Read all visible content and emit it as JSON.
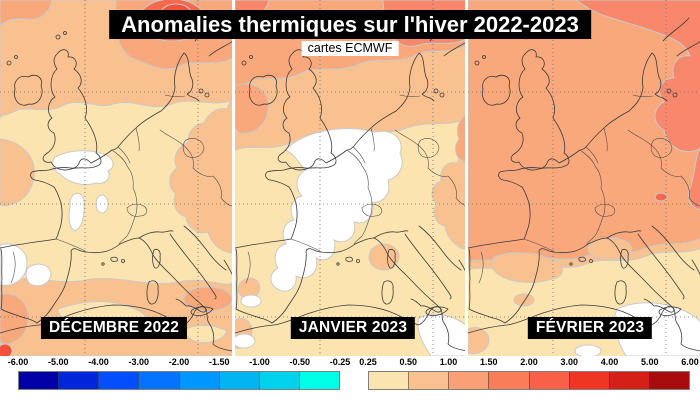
{
  "title": "Anomalies thermiques sur l'hiver 2022-2023",
  "credit": "cartes ECMWF",
  "panels": [
    {
      "label": "DÉCEMBRE 2022"
    },
    {
      "label": "JANVIER 2023"
    },
    {
      "label": "FÉVRIER 2023"
    }
  ],
  "map_palette": {
    "white": "#FFFFFF",
    "cream": "#FBE4AF",
    "peach": "#FAC190",
    "salmon": "#F9A87C",
    "coral": "#F8876B",
    "red": "#F7694E",
    "deepred": "#F4503C"
  },
  "colorbar": {
    "bars": [
      {
        "id": "negative",
        "tick_labels": [
          "-6.00",
          "-5.00",
          "-4.00",
          "-3.00",
          "-2.00",
          "-1.50",
          "-1.00",
          "-0.50",
          "-0.25"
        ],
        "tick_values": [
          -6.0,
          -5.0,
          -4.0,
          -3.0,
          -2.0,
          -1.5,
          -1.0,
          -0.5,
          -0.25
        ],
        "colors": [
          "#0000A6",
          "#0026DB",
          "#054EFF",
          "#0573FF",
          "#0096FF",
          "#00B5F1",
          "#00D2EC",
          "#00FFE6"
        ]
      },
      {
        "id": "positive",
        "tick_labels": [
          "0.25",
          "0.50",
          "1.00",
          "1.50",
          "2.00",
          "3.00",
          "4.00",
          "5.00",
          "6.00"
        ],
        "tick_values": [
          0.25,
          0.5,
          1.0,
          1.5,
          2.0,
          3.0,
          4.0,
          5.0,
          6.0
        ],
        "colors": [
          "#FBE4AF",
          "#FAC190",
          "#F9A076",
          "#F97D58",
          "#F86147",
          "#EF3524",
          "#D52017",
          "#A90C0C"
        ]
      }
    ]
  },
  "chart_data": {
    "type": "heatmap",
    "title": "Anomalies thermiques sur l'hiver 2022-2023",
    "subtitle": "cartes ECMWF",
    "maps": [
      {
        "month": "DÉCEMBRE 2022",
        "dominant_anomaly_range_c": [
          0.25,
          1.5
        ],
        "notes": "cream/peach over W-Europe, white near-zero patches over central France and NW Iberia, 2-3°C warm blob over Scandinavia"
      },
      {
        "month": "JANVIER 2023",
        "dominant_anomaly_range_c": [
          -0.25,
          1.0
        ],
        "notes": "large white near-zero area over France and W-Mediterranean, 1-1.5°C over UK and northern Europe"
      },
      {
        "month": "FÉVRIER 2023",
        "dominant_anomaly_range_c": [
          1.0,
          2.0
        ],
        "notes": "uniform 1-1.5°C over France/UK, 1.5-2°C NE Europe, 0.25-1°C over Iberia and Mediterranean"
      }
    ],
    "legend_position": "bottom",
    "scale_unit": "°C anomaly"
  }
}
